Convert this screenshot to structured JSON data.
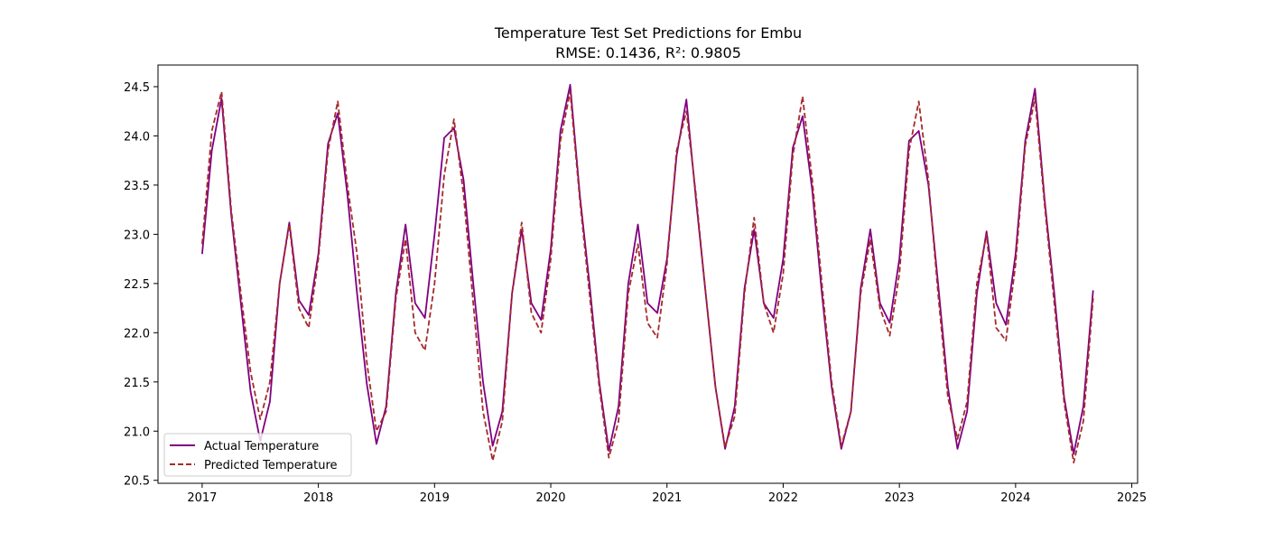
{
  "chart_data": {
    "type": "line",
    "title": "Temperature Test Set Predictions for Embu",
    "subtitle": "RMSE: 0.1436, R²: 0.9805",
    "xlabel": "",
    "ylabel": "",
    "xlim": [
      2016.62,
      2025.05
    ],
    "ylim": [
      20.47,
      24.72
    ],
    "xticks": [
      "2017",
      "2018",
      "2019",
      "2020",
      "2021",
      "2022",
      "2023",
      "2024",
      "2025"
    ],
    "yticks": [
      "20.5",
      "21.0",
      "21.5",
      "22.0",
      "22.5",
      "23.0",
      "23.5",
      "24.0",
      "24.5"
    ],
    "grid": false,
    "legend_position": "lower-left",
    "x": [
      2017.0,
      2017.083,
      2017.167,
      2017.25,
      2017.333,
      2017.417,
      2017.5,
      2017.583,
      2017.667,
      2017.75,
      2017.833,
      2017.917,
      2018.0,
      2018.083,
      2018.167,
      2018.25,
      2018.333,
      2018.417,
      2018.5,
      2018.583,
      2018.667,
      2018.75,
      2018.833,
      2018.917,
      2019.0,
      2019.083,
      2019.167,
      2019.25,
      2019.333,
      2019.417,
      2019.5,
      2019.583,
      2019.667,
      2019.75,
      2019.833,
      2019.917,
      2020.0,
      2020.083,
      2020.167,
      2020.25,
      2020.333,
      2020.417,
      2020.5,
      2020.583,
      2020.667,
      2020.75,
      2020.833,
      2020.917,
      2021.0,
      2021.083,
      2021.167,
      2021.25,
      2021.333,
      2021.417,
      2021.5,
      2021.583,
      2021.667,
      2021.75,
      2021.833,
      2021.917,
      2022.0,
      2022.083,
      2022.167,
      2022.25,
      2022.333,
      2022.417,
      2022.5,
      2022.583,
      2022.667,
      2022.75,
      2022.833,
      2022.917,
      2023.0,
      2023.083,
      2023.167,
      2023.25,
      2023.333,
      2023.417,
      2023.5,
      2023.583,
      2023.667,
      2023.75,
      2023.833,
      2023.917,
      2024.0,
      2024.083,
      2024.167,
      2024.25,
      2024.333,
      2024.417,
      2024.5,
      2024.583,
      2024.667
    ],
    "series": [
      {
        "name": "Actual Temperature",
        "color": "#800080",
        "dash": "solid",
        "values": [
          22.8,
          23.85,
          24.38,
          23.2,
          22.3,
          21.4,
          20.9,
          21.3,
          22.5,
          23.12,
          22.33,
          22.18,
          22.8,
          23.92,
          24.23,
          23.4,
          22.4,
          21.48,
          20.87,
          21.25,
          22.4,
          23.1,
          22.3,
          22.15,
          23.0,
          23.98,
          24.08,
          23.55,
          22.5,
          21.5,
          20.85,
          21.2,
          22.4,
          23.05,
          22.3,
          22.13,
          22.85,
          24.05,
          24.52,
          23.4,
          22.5,
          21.5,
          20.8,
          21.25,
          22.5,
          23.1,
          22.3,
          22.2,
          22.75,
          23.8,
          24.37,
          23.35,
          22.4,
          21.45,
          20.82,
          21.25,
          22.45,
          23.05,
          22.3,
          22.15,
          22.75,
          23.88,
          24.2,
          23.45,
          22.4,
          21.45,
          20.82,
          21.2,
          22.45,
          23.05,
          22.3,
          22.1,
          22.75,
          23.95,
          24.05,
          23.5,
          22.5,
          21.45,
          20.82,
          21.2,
          22.4,
          23.03,
          22.3,
          22.08,
          22.8,
          23.95,
          24.48,
          23.35,
          22.4,
          21.35,
          20.77,
          21.25,
          22.43
        ]
      },
      {
        "name": "Predicted Temperature",
        "color": "#a52a2a",
        "dash": "dashed",
        "values": [
          22.9,
          24.05,
          24.45,
          23.25,
          22.4,
          21.6,
          21.12,
          21.5,
          22.5,
          23.1,
          22.25,
          22.05,
          22.75,
          23.85,
          24.35,
          23.5,
          22.8,
          21.7,
          21.0,
          21.2,
          22.35,
          22.95,
          22.0,
          21.82,
          22.5,
          23.6,
          24.17,
          23.4,
          22.3,
          21.2,
          20.7,
          21.1,
          22.4,
          23.12,
          22.2,
          22.0,
          22.75,
          23.95,
          24.45,
          23.35,
          22.4,
          21.45,
          20.73,
          21.1,
          22.4,
          22.9,
          22.1,
          21.95,
          22.7,
          23.85,
          24.25,
          23.4,
          22.4,
          21.45,
          20.84,
          21.15,
          22.4,
          23.17,
          22.3,
          22.0,
          22.6,
          23.8,
          24.4,
          23.55,
          22.5,
          21.5,
          20.85,
          21.2,
          22.4,
          22.95,
          22.25,
          21.97,
          22.6,
          23.85,
          24.35,
          23.55,
          22.4,
          21.35,
          20.92,
          21.3,
          22.5,
          23.0,
          22.05,
          21.92,
          22.7,
          23.9,
          24.38,
          23.3,
          22.3,
          21.3,
          20.68,
          21.1,
          22.35
        ]
      }
    ]
  }
}
